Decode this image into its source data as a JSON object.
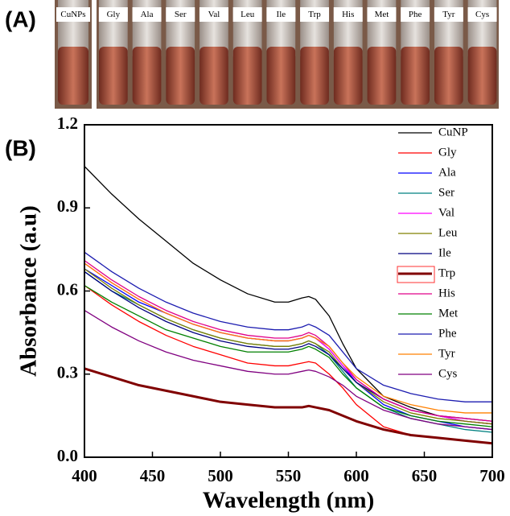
{
  "panels": {
    "a": "(A)",
    "b": "(B)"
  },
  "vials": [
    "CuNPs",
    "Gly",
    "Ala",
    "Ser",
    "Val",
    "Leu",
    "Ile",
    "Trp",
    "His",
    "Met",
    "Phe",
    "Tyr",
    "Cys"
  ],
  "chart_data": {
    "type": "line",
    "x_label": "Wavelength (nm)",
    "y_label": "Absorbance (a.u)",
    "x": [
      400,
      420,
      440,
      460,
      480,
      500,
      520,
      540,
      550,
      560,
      565,
      570,
      580,
      590,
      600,
      620,
      640,
      660,
      680,
      700
    ],
    "xlim": [
      400,
      700
    ],
    "xticks": [
      400,
      450,
      500,
      550,
      600,
      650,
      700
    ],
    "ylim": [
      0,
      1.2
    ],
    "yticks": [
      {
        "value": 0,
        "label": "0.0"
      },
      0.3,
      0.6,
      0.9,
      1.2
    ],
    "legend": "upper right",
    "series": [
      {
        "name": "CuNP",
        "color": "#000000",
        "line_width": 1.3,
        "values": [
          1.05,
          0.95,
          0.86,
          0.78,
          0.7,
          0.64,
          0.59,
          0.56,
          0.56,
          0.575,
          0.58,
          0.57,
          0.51,
          0.41,
          0.32,
          0.22,
          0.18,
          0.15,
          0.13,
          0.12
        ]
      },
      {
        "name": "Gly",
        "color": "#ff0000",
        "line_width": 1.3,
        "values": [
          0.62,
          0.55,
          0.49,
          0.44,
          0.4,
          0.37,
          0.34,
          0.33,
          0.33,
          0.34,
          0.345,
          0.34,
          0.3,
          0.25,
          0.19,
          0.11,
          0.08,
          0.07,
          0.06,
          0.05
        ]
      },
      {
        "name": "Ala",
        "color": "#0000ff",
        "line_width": 1.3,
        "values": [
          0.68,
          0.62,
          0.56,
          0.52,
          0.48,
          0.45,
          0.43,
          0.42,
          0.42,
          0.43,
          0.44,
          0.43,
          0.39,
          0.33,
          0.27,
          0.19,
          0.15,
          0.13,
          0.11,
          0.1
        ]
      },
      {
        "name": "Ser",
        "color": "#008080",
        "line_width": 1.3,
        "values": [
          0.67,
          0.6,
          0.55,
          0.5,
          0.46,
          0.43,
          0.41,
          0.4,
          0.4,
          0.41,
          0.42,
          0.41,
          0.37,
          0.31,
          0.25,
          0.18,
          0.14,
          0.12,
          0.1,
          0.09
        ]
      },
      {
        "name": "Val",
        "color": "#ff00ff",
        "line_width": 1.3,
        "values": [
          0.7,
          0.63,
          0.57,
          0.52,
          0.48,
          0.45,
          0.43,
          0.42,
          0.42,
          0.43,
          0.44,
          0.43,
          0.39,
          0.33,
          0.28,
          0.21,
          0.17,
          0.15,
          0.13,
          0.12
        ]
      },
      {
        "name": "Leu",
        "color": "#808000",
        "line_width": 1.3,
        "values": [
          0.68,
          0.61,
          0.55,
          0.5,
          0.46,
          0.43,
          0.41,
          0.4,
          0.4,
          0.41,
          0.42,
          0.41,
          0.38,
          0.32,
          0.27,
          0.2,
          0.16,
          0.14,
          0.13,
          0.12
        ]
      },
      {
        "name": "Ile",
        "color": "#000080",
        "line_width": 1.3,
        "values": [
          0.67,
          0.6,
          0.54,
          0.49,
          0.45,
          0.42,
          0.4,
          0.39,
          0.39,
          0.4,
          0.41,
          0.4,
          0.37,
          0.32,
          0.27,
          0.21,
          0.17,
          0.15,
          0.14,
          0.13
        ]
      },
      {
        "name": "Trp",
        "color": "#800000",
        "line_width": 3,
        "values": [
          0.32,
          0.29,
          0.26,
          0.24,
          0.22,
          0.2,
          0.19,
          0.18,
          0.18,
          0.18,
          0.185,
          0.18,
          0.17,
          0.15,
          0.13,
          0.1,
          0.08,
          0.07,
          0.06,
          0.05
        ]
      },
      {
        "name": "His",
        "color": "#e0008a",
        "line_width": 1.3,
        "values": [
          0.71,
          0.64,
          0.58,
          0.53,
          0.49,
          0.46,
          0.44,
          0.43,
          0.43,
          0.44,
          0.45,
          0.44,
          0.4,
          0.34,
          0.28,
          0.21,
          0.17,
          0.15,
          0.14,
          0.13
        ]
      },
      {
        "name": "Met",
        "color": "#008000",
        "line_width": 1.3,
        "values": [
          0.62,
          0.56,
          0.51,
          0.46,
          0.43,
          0.4,
          0.38,
          0.38,
          0.38,
          0.39,
          0.4,
          0.39,
          0.36,
          0.3,
          0.25,
          0.18,
          0.15,
          0.13,
          0.12,
          0.11
        ]
      },
      {
        "name": "Phe",
        "color": "#1c1cb0",
        "line_width": 1.3,
        "values": [
          0.74,
          0.67,
          0.61,
          0.56,
          0.52,
          0.49,
          0.47,
          0.46,
          0.46,
          0.47,
          0.48,
          0.47,
          0.44,
          0.38,
          0.32,
          0.26,
          0.23,
          0.21,
          0.2,
          0.2
        ]
      },
      {
        "name": "Tyr",
        "color": "#ff8000",
        "line_width": 1.3,
        "values": [
          0.7,
          0.63,
          0.57,
          0.52,
          0.48,
          0.45,
          0.43,
          0.42,
          0.42,
          0.43,
          0.44,
          0.43,
          0.4,
          0.34,
          0.29,
          0.22,
          0.19,
          0.17,
          0.16,
          0.16
        ]
      },
      {
        "name": "Cys",
        "color": "#800080",
        "line_width": 1.3,
        "values": [
          0.53,
          0.47,
          0.42,
          0.38,
          0.35,
          0.33,
          0.31,
          0.3,
          0.3,
          0.31,
          0.315,
          0.31,
          0.29,
          0.26,
          0.22,
          0.17,
          0.14,
          0.12,
          0.11,
          0.1
        ]
      }
    ]
  }
}
